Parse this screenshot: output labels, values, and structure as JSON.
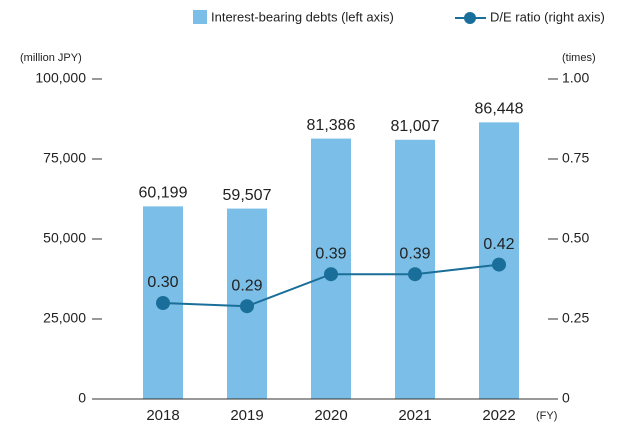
{
  "chart_data": {
    "type": "bar_line",
    "categories": [
      "2018",
      "2019",
      "2020",
      "2021",
      "2022"
    ],
    "series": [
      {
        "name": "Interest-bearing debts (left axis)",
        "color": "#7bbfe8",
        "type": "bar",
        "values": [
          60199,
          59507,
          81386,
          81007,
          86448
        ],
        "value_labels": [
          "60,199",
          "59,507",
          "81,386",
          "81,007",
          "86,448"
        ]
      },
      {
        "name": "D/E ratio (right axis)",
        "color": "#1a6e9a",
        "type": "line",
        "axis": "y2",
        "values": [
          0.3,
          0.29,
          0.39,
          0.39,
          0.42
        ],
        "value_labels": [
          "0.30",
          "0.29",
          "0.39",
          "0.39",
          "0.42"
        ]
      }
    ],
    "ylabel": "(million JPY)",
    "y2label": "(times)",
    "xlabel": "(FY)",
    "ylim": [
      0,
      100000
    ],
    "yticks": [
      0,
      {
        "value": 25000,
        "label": "25,000"
      },
      {
        "value": 50000,
        "label": "50,000"
      },
      {
        "value": 75000,
        "label": "75,000"
      },
      {
        "value": 100000,
        "label": "100,000"
      }
    ],
    "y2lim": [
      0,
      1
    ],
    "y2ticks": [
      0,
      {
        "value": 0.25,
        "label": "0.25"
      },
      {
        "value": 0.5,
        "label": "0.50"
      },
      {
        "value": 0.75,
        "label": "0.75"
      },
      {
        "value": 1,
        "label": "1.00"
      }
    ],
    "legend": "top-right"
  }
}
